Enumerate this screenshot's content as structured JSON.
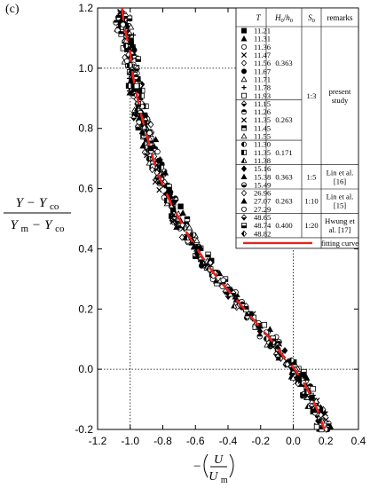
{
  "chart_data": {
    "type": "scatter",
    "panel_label": "(c)",
    "ylabel": {
      "numerator": {
        "parts": [
          "Y",
          "−",
          "Y",
          "co"
        ]
      },
      "denominator": {
        "parts": [
          "Y",
          "m",
          "−",
          "Y",
          "co"
        ]
      }
    },
    "xlabel": {
      "prefix": "−",
      "numerator": "U",
      "denominator_main": "U",
      "denominator_sub": "m"
    },
    "xlim": [
      -1.2,
      0.4
    ],
    "ylim": [
      -0.2,
      1.2
    ],
    "x_ticks": [
      "-1.2",
      "-1.0",
      "-0.8",
      "-0.6",
      "-0.4",
      "-0.2",
      "0.0",
      "0.2",
      "0.4"
    ],
    "y_ticks": [
      "-0.2",
      "0.0",
      "0.2",
      "0.4",
      "0.6",
      "0.8",
      "1.0",
      "1.2"
    ],
    "reference_lines": {
      "vertical_x": [
        -1.0,
        0.0
      ],
      "horizontal_y": [
        0.0,
        1.0
      ],
      "style": "dotted"
    },
    "fitting_curve": {
      "color": "#e8221b",
      "points": [
        [
          -1.05,
          1.2
        ],
        [
          -1.04,
          1.15
        ],
        [
          -1.02,
          1.1
        ],
        [
          -1.0,
          1.05
        ],
        [
          -0.99,
          1.0
        ],
        [
          -0.975,
          0.95
        ],
        [
          -0.955,
          0.9
        ],
        [
          -0.935,
          0.85
        ],
        [
          -0.91,
          0.8
        ],
        [
          -0.885,
          0.75
        ],
        [
          -0.86,
          0.7
        ],
        [
          -0.83,
          0.65
        ],
        [
          -0.79,
          0.6
        ],
        [
          -0.75,
          0.55
        ],
        [
          -0.7,
          0.5
        ],
        [
          -0.65,
          0.45
        ],
        [
          -0.59,
          0.4
        ],
        [
          -0.53,
          0.35
        ],
        [
          -0.46,
          0.3
        ],
        [
          -0.38,
          0.25
        ],
        [
          -0.3,
          0.2
        ],
        [
          -0.22,
          0.15
        ],
        [
          -0.14,
          0.1
        ],
        [
          -0.07,
          0.05
        ],
        [
          0.01,
          0.0
        ],
        [
          0.07,
          -0.05
        ],
        [
          0.12,
          -0.1
        ],
        [
          0.16,
          -0.15
        ],
        [
          0.19,
          -0.2
        ]
      ]
    },
    "legend": {
      "location": "upper-right",
      "header": {
        "T": "T",
        "H": "H",
        "H_sub": "0",
        "h": "h",
        "h_sub": "0",
        "S": "S",
        "S_sub": "0",
        "remarks": "remarks"
      },
      "groups": [
        {
          "ratio": "0.363",
          "entries": [
            {
              "T": "11.21",
              "marker": "square-filled"
            },
            {
              "T": "11.31",
              "marker": "triangle-filled"
            },
            {
              "T": "11.36",
              "marker": "circle-open"
            },
            {
              "T": "11.47",
              "marker": "cross-x"
            },
            {
              "T": "11.56",
              "marker": "diamond-open"
            },
            {
              "T": "11.67",
              "marker": "circle-filled"
            },
            {
              "T": "11.71",
              "marker": "triangle-open"
            },
            {
              "T": "11.78",
              "marker": "plus"
            },
            {
              "T": "11.93",
              "marker": "square-open"
            }
          ]
        },
        {
          "ratio": "0.263",
          "entries": [
            {
              "T": "11.15",
              "marker": "diamond-half"
            },
            {
              "T": "11.26",
              "marker": "circle-top-half"
            },
            {
              "T": "11.35",
              "marker": "cross-x"
            },
            {
              "T": "11.45",
              "marker": "square-half"
            },
            {
              "T": "11.55",
              "marker": "triangle-open"
            }
          ]
        },
        {
          "ratio": "0.171",
          "entries": [
            {
              "T": "11.30",
              "marker": "circle-left-half"
            },
            {
              "T": "11.35",
              "marker": "square-left-half"
            },
            {
              "T": "11.38",
              "marker": "triangle-left-half"
            }
          ]
        },
        {
          "ratio": "0.363",
          "entries": [
            {
              "T": "15.16",
              "marker": "diamond-filled"
            },
            {
              "T": "15.38",
              "marker": "triangle-filled"
            },
            {
              "T": "15.49",
              "marker": "circle-bottom-half"
            }
          ]
        },
        {
          "ratio": "0.263",
          "entries": [
            {
              "T": "26.96",
              "marker": "diamond-open"
            },
            {
              "T": "27.07",
              "marker": "triangle-filled"
            },
            {
              "T": "27.29",
              "marker": "circle-open"
            }
          ]
        },
        {
          "ratio": "0.400",
          "entries": [
            {
              "T": "48.65",
              "marker": "diamond-half"
            },
            {
              "T": "48.74",
              "marker": "square-bottom-half"
            },
            {
              "T": "48.82",
              "marker": "diamond-left-half"
            }
          ]
        }
      ],
      "slopes": [
        "1:3",
        "1:5",
        "1:10",
        "1:20"
      ],
      "remarks": [
        [
          "present",
          "study"
        ],
        [
          "Lin et al.",
          "[16]"
        ],
        [
          "Lin et al.",
          "[15]"
        ],
        [
          "Hwung et",
          "al. [17]"
        ]
      ],
      "fit_label": "fitting curve"
    }
  }
}
